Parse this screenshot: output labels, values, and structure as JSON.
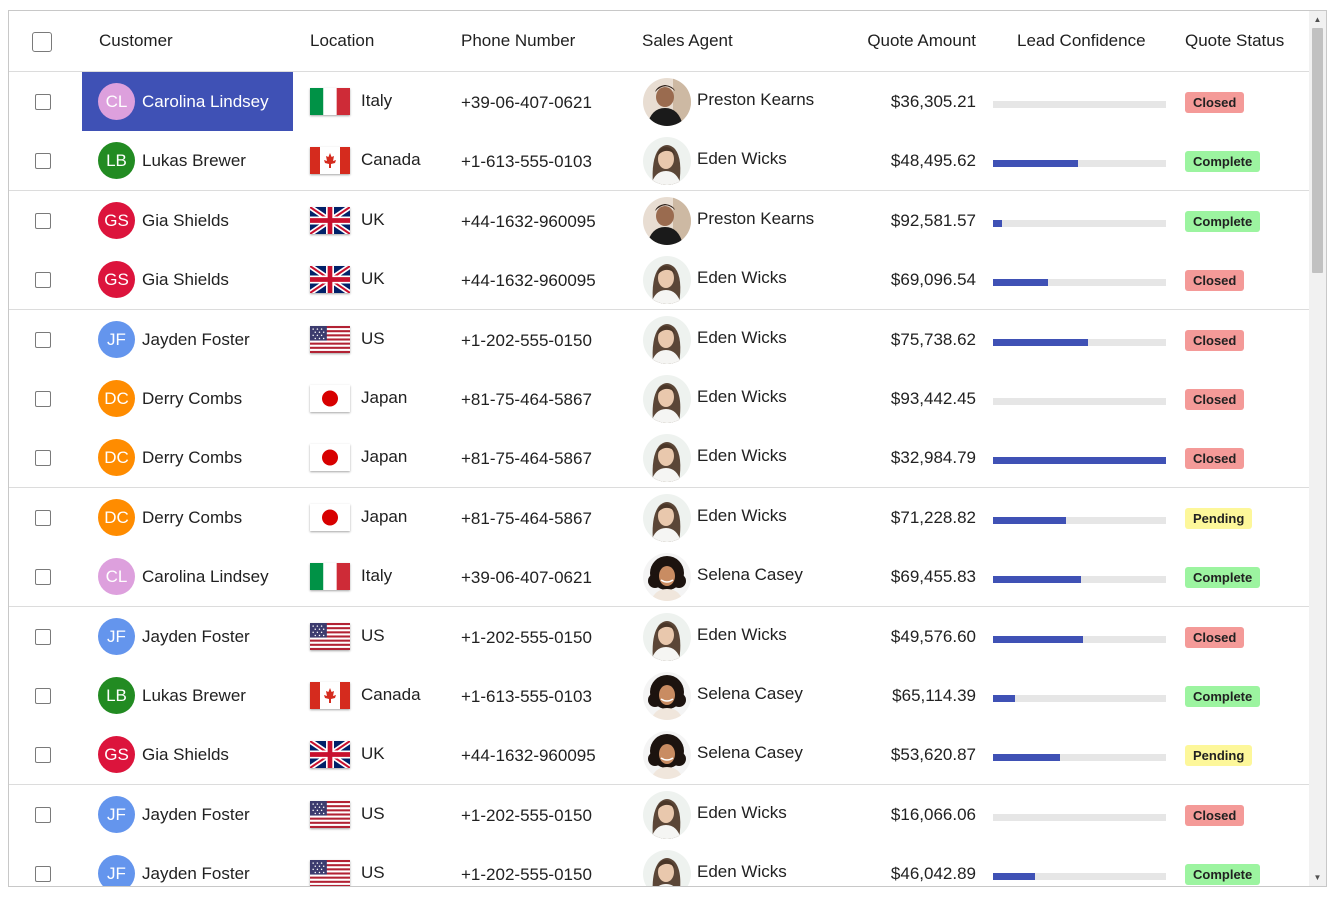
{
  "headers": {
    "customer": "Customer",
    "location": "Location",
    "phone": "Phone Number",
    "agent": "Sales Agent",
    "amount": "Quote Amount",
    "confidence": "Lead Confidence",
    "status": "Quote Status"
  },
  "colors": {
    "accent": "#3f51b5",
    "status_closed": "#f49a98",
    "status_complete": "#9cf4a0",
    "status_pending": "#fdf79a"
  },
  "rows": [
    {
      "initials": "CL",
      "customer": "Carolina Lindsey",
      "avatar_color": "#dda0dd",
      "country": "Italy",
      "flag": "italy-flag",
      "phone": "+39-06-407-0621",
      "agent": "Preston Kearns",
      "agent_photo": "male-agent-photo",
      "amount": "$36,305.21",
      "confidence": 0,
      "status": "Closed",
      "selected": true
    },
    {
      "initials": "LB",
      "customer": "Lukas Brewer",
      "avatar_color": "#228b22",
      "country": "Canada",
      "flag": "canada-flag",
      "phone": "+1-613-555-0103",
      "agent": "Eden Wicks",
      "agent_photo": "female-agent-photo",
      "amount": "$48,495.62",
      "confidence": 0.49,
      "status": "Complete",
      "selected": false
    },
    {
      "initials": "GS",
      "customer": "Gia Shields",
      "avatar_color": "#dc143c",
      "country": "UK",
      "flag": "uk-flag",
      "phone": "+44-1632-960095",
      "agent": "Preston Kearns",
      "agent_photo": "male-agent-photo",
      "amount": "$92,581.57",
      "confidence": 0.05,
      "status": "Complete",
      "selected": false
    },
    {
      "initials": "GS",
      "customer": "Gia Shields",
      "avatar_color": "#dc143c",
      "country": "UK",
      "flag": "uk-flag",
      "phone": "+44-1632-960095",
      "agent": "Eden Wicks",
      "agent_photo": "female-agent-photo",
      "amount": "$69,096.54",
      "confidence": 0.32,
      "status": "Closed",
      "selected": false
    },
    {
      "initials": "JF",
      "customer": "Jayden Foster",
      "avatar_color": "#6495ed",
      "country": "US",
      "flag": "us-flag",
      "phone": "+1-202-555-0150",
      "agent": "Eden Wicks",
      "agent_photo": "female-agent-photo",
      "amount": "$75,738.62",
      "confidence": 0.55,
      "status": "Closed",
      "selected": false
    },
    {
      "initials": "DC",
      "customer": "Derry Combs",
      "avatar_color": "#ff8c00",
      "country": "Japan",
      "flag": "japan-flag",
      "phone": "+81-75-464-5867",
      "agent": "Eden Wicks",
      "agent_photo": "female-agent-photo",
      "amount": "$93,442.45",
      "confidence": 0,
      "status": "Closed",
      "selected": false
    },
    {
      "initials": "DC",
      "customer": "Derry Combs",
      "avatar_color": "#ff8c00",
      "country": "Japan",
      "flag": "japan-flag",
      "phone": "+81-75-464-5867",
      "agent": "Eden Wicks",
      "agent_photo": "female-agent-photo",
      "amount": "$32,984.79",
      "confidence": 1.0,
      "status": "Closed",
      "selected": false
    },
    {
      "initials": "DC",
      "customer": "Derry Combs",
      "avatar_color": "#ff8c00",
      "country": "Japan",
      "flag": "japan-flag",
      "phone": "+81-75-464-5867",
      "agent": "Eden Wicks",
      "agent_photo": "female-agent-photo",
      "amount": "$71,228.82",
      "confidence": 0.42,
      "status": "Pending",
      "selected": false
    },
    {
      "initials": "CL",
      "customer": "Carolina Lindsey",
      "avatar_color": "#dda0dd",
      "country": "Italy",
      "flag": "italy-flag",
      "phone": "+39-06-407-0621",
      "agent": "Selena Casey",
      "agent_photo": "curly-hair-agent-photo",
      "amount": "$69,455.83",
      "confidence": 0.51,
      "status": "Complete",
      "selected": false
    },
    {
      "initials": "JF",
      "customer": "Jayden Foster",
      "avatar_color": "#6495ed",
      "country": "US",
      "flag": "us-flag",
      "phone": "+1-202-555-0150",
      "agent": "Eden Wicks",
      "agent_photo": "female-agent-photo",
      "amount": "$49,576.60",
      "confidence": 0.52,
      "status": "Closed",
      "selected": false
    },
    {
      "initials": "LB",
      "customer": "Lukas Brewer",
      "avatar_color": "#228b22",
      "country": "Canada",
      "flag": "canada-flag",
      "phone": "+1-613-555-0103",
      "agent": "Selena Casey",
      "agent_photo": "curly-hair-agent-photo",
      "amount": "$65,114.39",
      "confidence": 0.13,
      "status": "Complete",
      "selected": false
    },
    {
      "initials": "GS",
      "customer": "Gia Shields",
      "avatar_color": "#dc143c",
      "country": "UK",
      "flag": "uk-flag",
      "phone": "+44-1632-960095",
      "agent": "Selena Casey",
      "agent_photo": "curly-hair-agent-photo",
      "amount": "$53,620.87",
      "confidence": 0.39,
      "status": "Pending",
      "selected": false
    },
    {
      "initials": "JF",
      "customer": "Jayden Foster",
      "avatar_color": "#6495ed",
      "country": "US",
      "flag": "us-flag",
      "phone": "+1-202-555-0150",
      "agent": "Eden Wicks",
      "agent_photo": "female-agent-photo",
      "amount": "$16,066.06",
      "confidence": 0,
      "status": "Closed",
      "selected": false
    },
    {
      "initials": "JF",
      "customer": "Jayden Foster",
      "avatar_color": "#6495ed",
      "country": "US",
      "flag": "us-flag",
      "phone": "+1-202-555-0150",
      "agent": "Eden Wicks",
      "agent_photo": "female-agent-photo",
      "amount": "$46,042.89",
      "confidence": 0.24,
      "status": "Complete",
      "selected": false
    }
  ]
}
